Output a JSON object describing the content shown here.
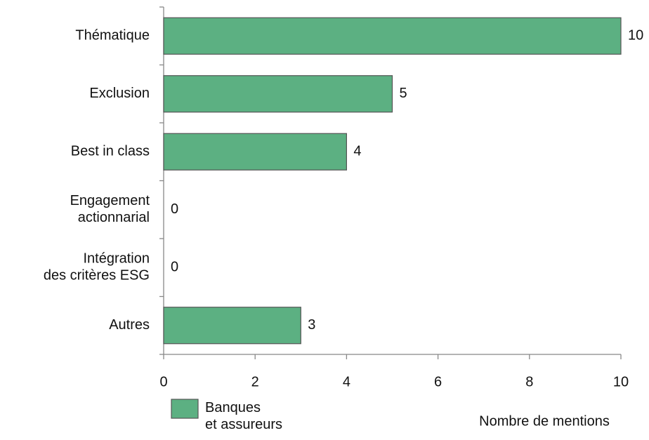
{
  "chart_data": {
    "type": "barh",
    "categories": [
      "Thématique",
      "Exclusion",
      "Best in class",
      "Engagement actionnarial",
      "Intégration des critères ESG",
      "Autres"
    ],
    "series": [
      {
        "name": "Banques et assureurs",
        "color": "#5cb082",
        "values": [
          10,
          5,
          4,
          0,
          0,
          3
        ]
      }
    ],
    "xlabel": "Nombre de mentions",
    "xlim": [
      0,
      10
    ],
    "xticks": [
      0,
      2,
      4,
      6,
      8,
      10
    ],
    "legend": "bottom-left"
  }
}
